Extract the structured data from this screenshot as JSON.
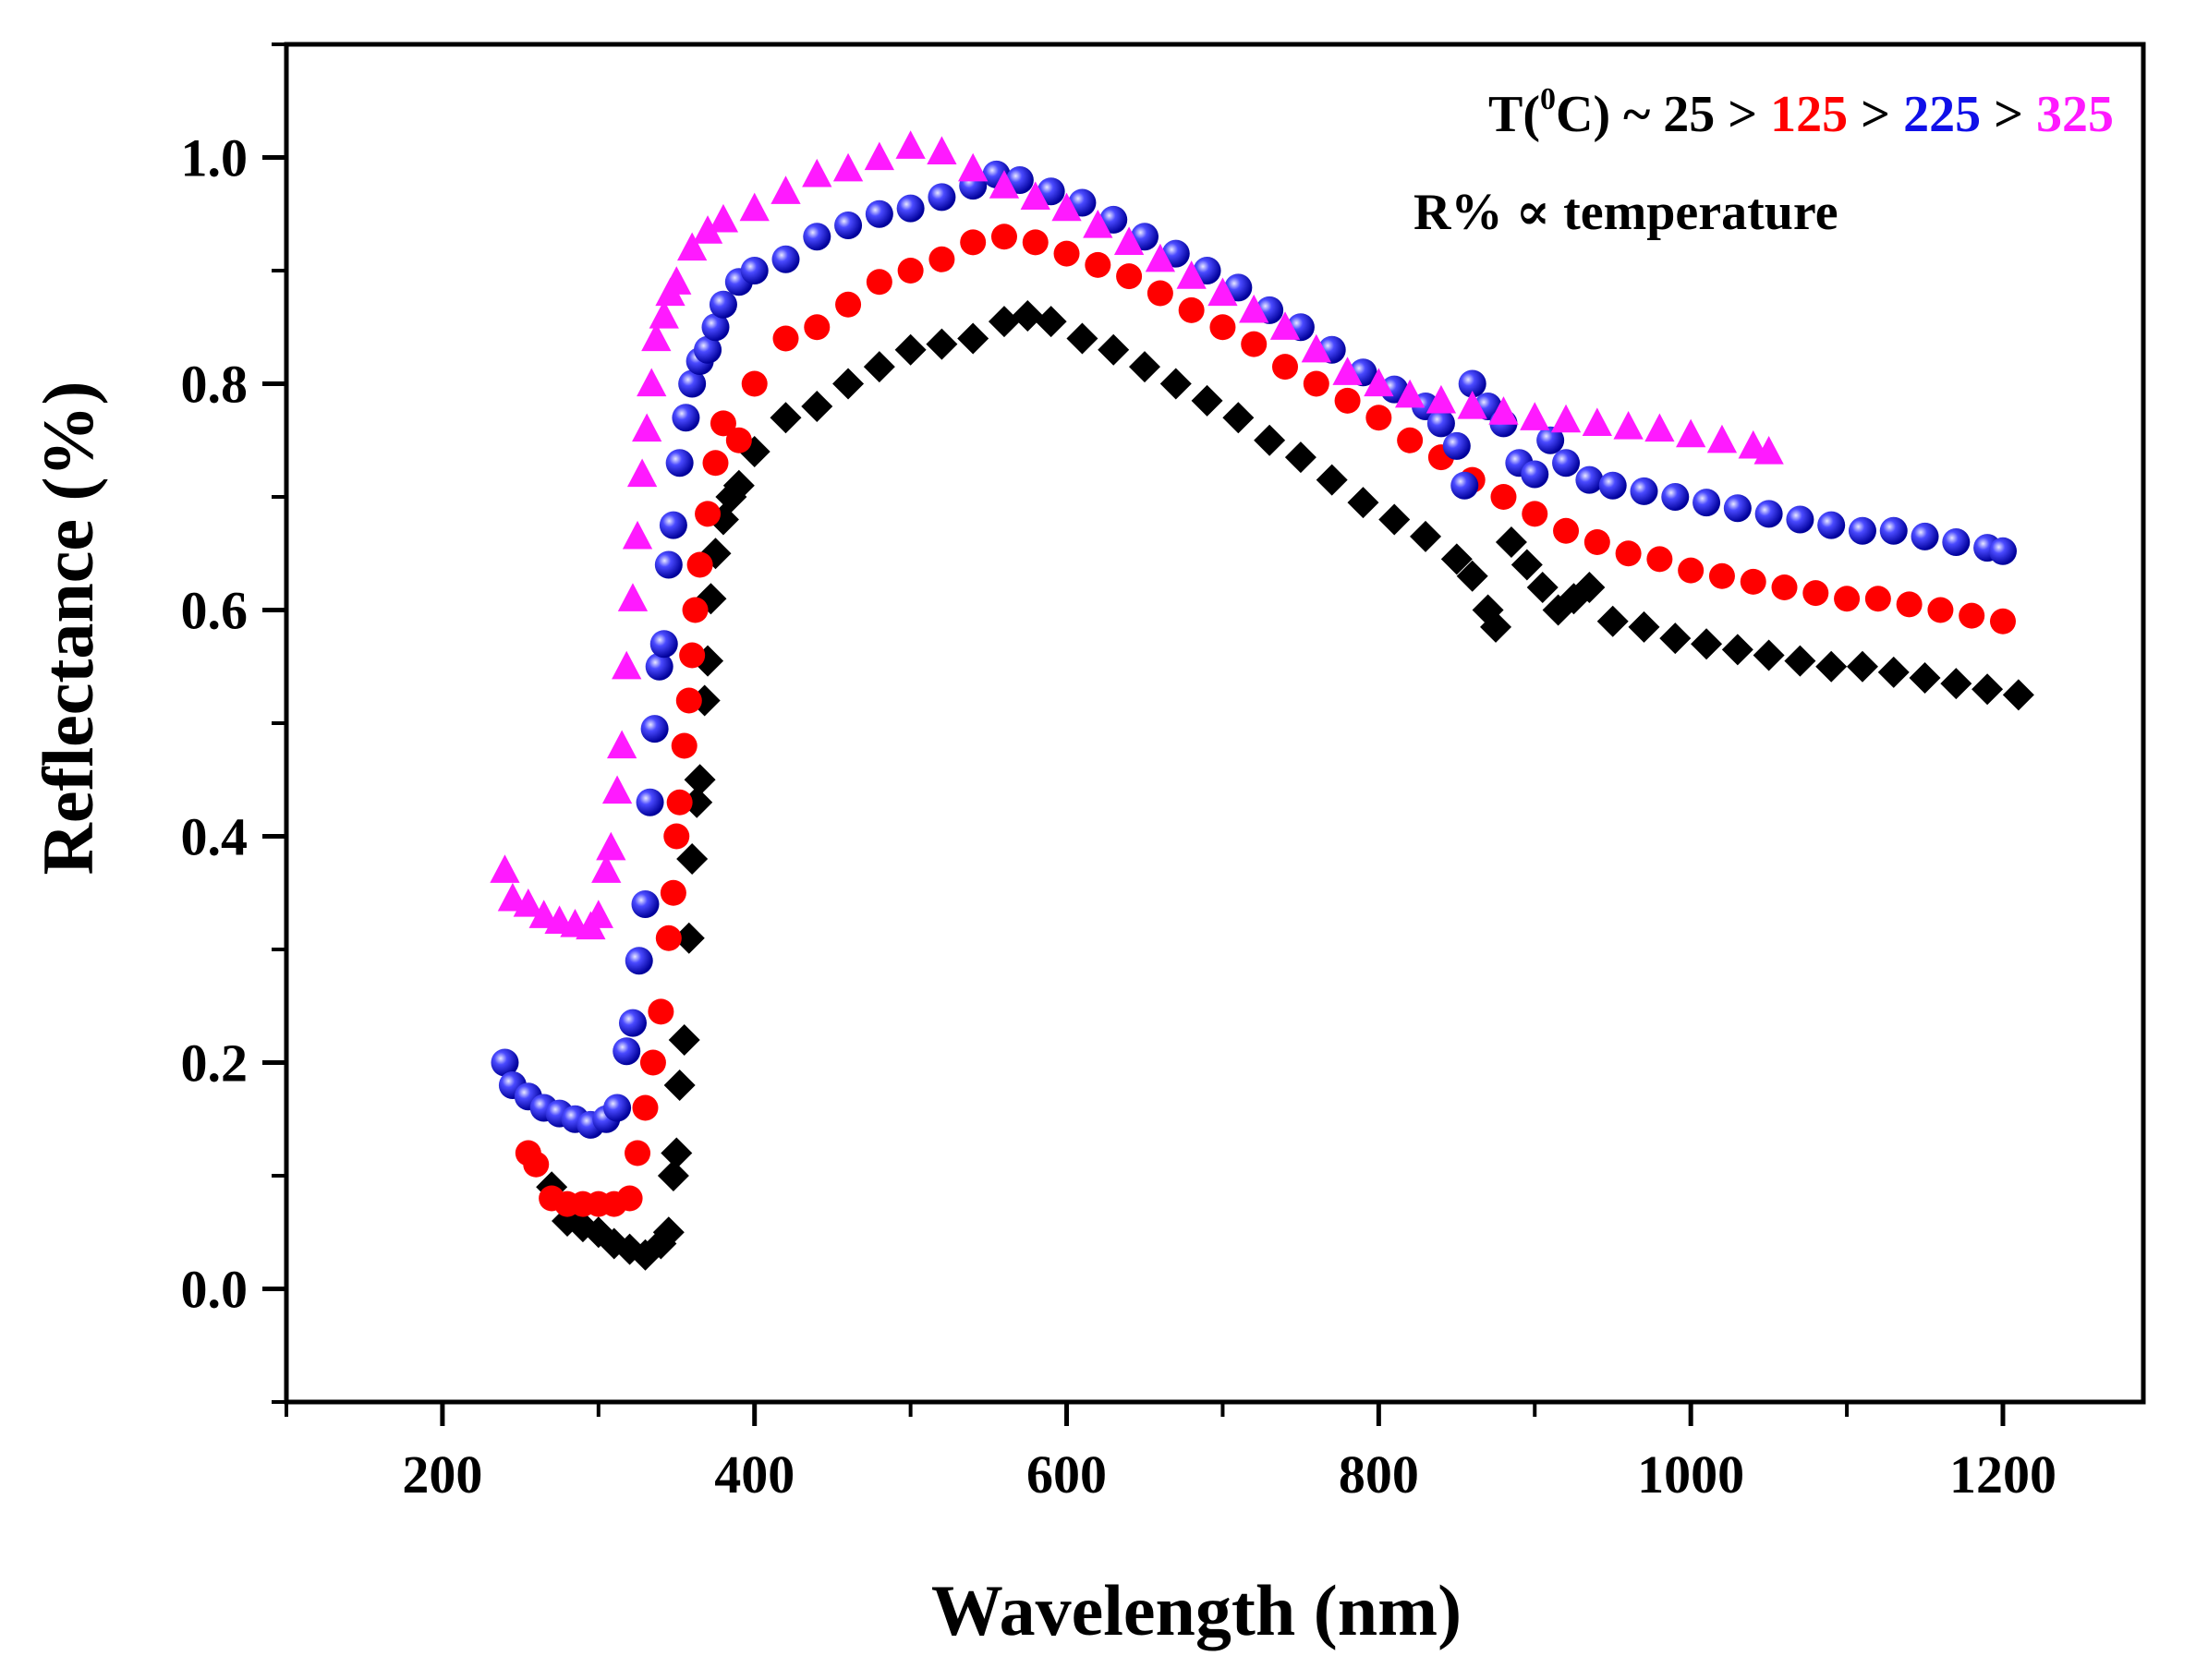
{
  "chart_data": {
    "type": "scatter",
    "title": "",
    "xlabel": "Wavelength (nm)",
    "ylabel": "Reflectance (%)",
    "xlim": [
      100,
      1290
    ],
    "ylim": [
      -0.1,
      1.1
    ],
    "xticks": [
      200,
      400,
      600,
      800,
      1000,
      1200
    ],
    "yticks": [
      0.0,
      0.2,
      0.4,
      0.6,
      0.8,
      1.0
    ],
    "xtick_labels": [
      "200",
      "400",
      "600",
      "800",
      "1000",
      "1200"
    ],
    "ytick_labels": [
      "0.0",
      "0.2",
      "0.4",
      "0.6",
      "0.8",
      "1.0"
    ],
    "grid": false,
    "legend_position": "top-right",
    "annotations": {
      "line1": {
        "prefix": "T(",
        "superscript": "0",
        "unit": "C) ~ 25 > ",
        "t125": "125",
        "sep1": " > ",
        "t225": "225",
        "sep2": " > ",
        "t325": "325"
      },
      "line2": "R% ∝ temperature"
    },
    "series": [
      {
        "name": "25",
        "marker": "diamond",
        "color": "#000000",
        "points": [
          [
            270,
            0.09
          ],
          [
            280,
            0.06
          ],
          [
            290,
            0.055
          ],
          [
            300,
            0.05
          ],
          [
            310,
            0.04
          ],
          [
            320,
            0.035
          ],
          [
            330,
            0.03
          ],
          [
            340,
            0.04
          ],
          [
            345,
            0.05
          ],
          [
            348,
            0.1
          ],
          [
            350,
            0.12
          ],
          [
            352,
            0.18
          ],
          [
            355,
            0.22
          ],
          [
            358,
            0.31
          ],
          [
            360,
            0.38
          ],
          [
            363,
            0.43
          ],
          [
            365,
            0.45
          ],
          [
            368,
            0.52
          ],
          [
            370,
            0.555
          ],
          [
            372,
            0.61
          ],
          [
            375,
            0.65
          ],
          [
            380,
            0.68
          ],
          [
            385,
            0.7
          ],
          [
            390,
            0.71
          ],
          [
            400,
            0.74
          ],
          [
            420,
            0.77
          ],
          [
            440,
            0.78
          ],
          [
            460,
            0.8
          ],
          [
            480,
            0.815
          ],
          [
            500,
            0.83
          ],
          [
            520,
            0.835
          ],
          [
            540,
            0.84
          ],
          [
            560,
            0.855
          ],
          [
            575,
            0.86
          ],
          [
            590,
            0.855
          ],
          [
            610,
            0.84
          ],
          [
            630,
            0.83
          ],
          [
            650,
            0.815
          ],
          [
            670,
            0.8
          ],
          [
            690,
            0.785
          ],
          [
            710,
            0.77
          ],
          [
            730,
            0.75
          ],
          [
            750,
            0.735
          ],
          [
            770,
            0.715
          ],
          [
            790,
            0.695
          ],
          [
            810,
            0.68
          ],
          [
            830,
            0.665
          ],
          [
            850,
            0.645
          ],
          [
            860,
            0.63
          ],
          [
            870,
            0.6
          ],
          [
            875,
            0.585
          ],
          [
            885,
            0.66
          ],
          [
            895,
            0.64
          ],
          [
            905,
            0.62
          ],
          [
            915,
            0.6
          ],
          [
            925,
            0.61
          ],
          [
            935,
            0.62
          ],
          [
            950,
            0.59
          ],
          [
            970,
            0.585
          ],
          [
            990,
            0.575
          ],
          [
            1010,
            0.57
          ],
          [
            1030,
            0.565
          ],
          [
            1050,
            0.56
          ],
          [
            1070,
            0.555
          ],
          [
            1090,
            0.55
          ],
          [
            1110,
            0.55
          ],
          [
            1130,
            0.545
          ],
          [
            1150,
            0.54
          ],
          [
            1170,
            0.535
          ],
          [
            1190,
            0.53
          ],
          [
            1210,
            0.525
          ]
        ]
      },
      {
        "name": "125",
        "marker": "circle",
        "color": "#ff0000",
        "points": [
          [
            255,
            0.12
          ],
          [
            260,
            0.11
          ],
          [
            270,
            0.08
          ],
          [
            280,
            0.075
          ],
          [
            290,
            0.075
          ],
          [
            300,
            0.075
          ],
          [
            310,
            0.075
          ],
          [
            320,
            0.08
          ],
          [
            325,
            0.12
          ],
          [
            330,
            0.16
          ],
          [
            335,
            0.2
          ],
          [
            340,
            0.245
          ],
          [
            345,
            0.31
          ],
          [
            348,
            0.35
          ],
          [
            350,
            0.4
          ],
          [
            352,
            0.43
          ],
          [
            355,
            0.48
          ],
          [
            358,
            0.52
          ],
          [
            360,
            0.56
          ],
          [
            362,
            0.6
          ],
          [
            365,
            0.64
          ],
          [
            370,
            0.685
          ],
          [
            375,
            0.73
          ],
          [
            380,
            0.765
          ],
          [
            390,
            0.75
          ],
          [
            400,
            0.8
          ],
          [
            420,
            0.84
          ],
          [
            440,
            0.85
          ],
          [
            460,
            0.87
          ],
          [
            480,
            0.89
          ],
          [
            500,
            0.9
          ],
          [
            520,
            0.91
          ],
          [
            540,
            0.925
          ],
          [
            560,
            0.93
          ],
          [
            580,
            0.925
          ],
          [
            600,
            0.915
          ],
          [
            620,
            0.905
          ],
          [
            640,
            0.895
          ],
          [
            660,
            0.88
          ],
          [
            680,
            0.865
          ],
          [
            700,
            0.85
          ],
          [
            720,
            0.835
          ],
          [
            740,
            0.815
          ],
          [
            760,
            0.8
          ],
          [
            780,
            0.785
          ],
          [
            800,
            0.77
          ],
          [
            820,
            0.75
          ],
          [
            840,
            0.735
          ],
          [
            860,
            0.715
          ],
          [
            880,
            0.7
          ],
          [
            900,
            0.685
          ],
          [
            920,
            0.67
          ],
          [
            940,
            0.66
          ],
          [
            960,
            0.65
          ],
          [
            980,
            0.645
          ],
          [
            1000,
            0.635
          ],
          [
            1020,
            0.63
          ],
          [
            1040,
            0.625
          ],
          [
            1060,
            0.62
          ],
          [
            1080,
            0.615
          ],
          [
            1100,
            0.61
          ],
          [
            1120,
            0.61
          ],
          [
            1140,
            0.605
          ],
          [
            1160,
            0.6
          ],
          [
            1180,
            0.595
          ],
          [
            1200,
            0.59
          ]
        ]
      },
      {
        "name": "225",
        "marker": "sphere",
        "color": "#1010e8",
        "points": [
          [
            240,
            0.2
          ],
          [
            245,
            0.18
          ],
          [
            255,
            0.17
          ],
          [
            265,
            0.16
          ],
          [
            275,
            0.155
          ],
          [
            285,
            0.15
          ],
          [
            295,
            0.145
          ],
          [
            305,
            0.15
          ],
          [
            312,
            0.16
          ],
          [
            318,
            0.21
          ],
          [
            322,
            0.235
          ],
          [
            326,
            0.29
          ],
          [
            330,
            0.34
          ],
          [
            333,
            0.43
          ],
          [
            336,
            0.495
          ],
          [
            339,
            0.55
          ],
          [
            342,
            0.57
          ],
          [
            345,
            0.64
          ],
          [
            348,
            0.675
          ],
          [
            352,
            0.73
          ],
          [
            356,
            0.77
          ],
          [
            360,
            0.8
          ],
          [
            365,
            0.82
          ],
          [
            370,
            0.83
          ],
          [
            375,
            0.85
          ],
          [
            380,
            0.87
          ],
          [
            390,
            0.89
          ],
          [
            400,
            0.9
          ],
          [
            420,
            0.91
          ],
          [
            440,
            0.93
          ],
          [
            460,
            0.94
          ],
          [
            480,
            0.95
          ],
          [
            500,
            0.955
          ],
          [
            520,
            0.965
          ],
          [
            540,
            0.975
          ],
          [
            555,
            0.985
          ],
          [
            570,
            0.98
          ],
          [
            590,
            0.97
          ],
          [
            610,
            0.96
          ],
          [
            630,
            0.945
          ],
          [
            650,
            0.93
          ],
          [
            670,
            0.915
          ],
          [
            690,
            0.9
          ],
          [
            710,
            0.885
          ],
          [
            730,
            0.865
          ],
          [
            750,
            0.85
          ],
          [
            770,
            0.83
          ],
          [
            790,
            0.81
          ],
          [
            810,
            0.795
          ],
          [
            830,
            0.78
          ],
          [
            840,
            0.765
          ],
          [
            850,
            0.745
          ],
          [
            855,
            0.71
          ],
          [
            860,
            0.8
          ],
          [
            870,
            0.78
          ],
          [
            880,
            0.765
          ],
          [
            890,
            0.73
          ],
          [
            900,
            0.72
          ],
          [
            910,
            0.75
          ],
          [
            920,
            0.73
          ],
          [
            935,
            0.715
          ],
          [
            950,
            0.71
          ],
          [
            970,
            0.705
          ],
          [
            990,
            0.7
          ],
          [
            1010,
            0.695
          ],
          [
            1030,
            0.69
          ],
          [
            1050,
            0.685
          ],
          [
            1070,
            0.68
          ],
          [
            1090,
            0.675
          ],
          [
            1110,
            0.67
          ],
          [
            1130,
            0.67
          ],
          [
            1150,
            0.665
          ],
          [
            1170,
            0.66
          ],
          [
            1190,
            0.655
          ],
          [
            1200,
            0.652
          ]
        ]
      },
      {
        "name": "325",
        "marker": "triangle",
        "color": "#ff1aff",
        "points": [
          [
            240,
            0.37
          ],
          [
            245,
            0.345
          ],
          [
            255,
            0.34
          ],
          [
            265,
            0.33
          ],
          [
            275,
            0.325
          ],
          [
            285,
            0.322
          ],
          [
            295,
            0.32
          ],
          [
            300,
            0.33
          ],
          [
            305,
            0.37
          ],
          [
            308,
            0.39
          ],
          [
            312,
            0.44
          ],
          [
            315,
            0.48
          ],
          [
            318,
            0.55
          ],
          [
            322,
            0.61
          ],
          [
            325,
            0.665
          ],
          [
            328,
            0.72
          ],
          [
            331,
            0.76
          ],
          [
            334,
            0.8
          ],
          [
            337,
            0.84
          ],
          [
            342,
            0.86
          ],
          [
            346,
            0.88
          ],
          [
            350,
            0.89
          ],
          [
            360,
            0.92
          ],
          [
            370,
            0.935
          ],
          [
            380,
            0.945
          ],
          [
            400,
            0.955
          ],
          [
            420,
            0.97
          ],
          [
            440,
            0.985
          ],
          [
            460,
            0.99
          ],
          [
            480,
            1.0
          ],
          [
            500,
            1.01
          ],
          [
            520,
            1.005
          ],
          [
            540,
            0.99
          ],
          [
            560,
            0.975
          ],
          [
            580,
            0.965
          ],
          [
            600,
            0.955
          ],
          [
            620,
            0.94
          ],
          [
            640,
            0.925
          ],
          [
            660,
            0.91
          ],
          [
            680,
            0.895
          ],
          [
            700,
            0.88
          ],
          [
            720,
            0.865
          ],
          [
            740,
            0.85
          ],
          [
            760,
            0.83
          ],
          [
            780,
            0.81
          ],
          [
            800,
            0.8
          ],
          [
            820,
            0.79
          ],
          [
            840,
            0.785
          ],
          [
            860,
            0.78
          ],
          [
            880,
            0.775
          ],
          [
            900,
            0.77
          ],
          [
            920,
            0.768
          ],
          [
            940,
            0.765
          ],
          [
            960,
            0.762
          ],
          [
            980,
            0.76
          ],
          [
            1000,
            0.755
          ],
          [
            1020,
            0.75
          ],
          [
            1040,
            0.745
          ],
          [
            1050,
            0.74
          ]
        ]
      }
    ]
  }
}
